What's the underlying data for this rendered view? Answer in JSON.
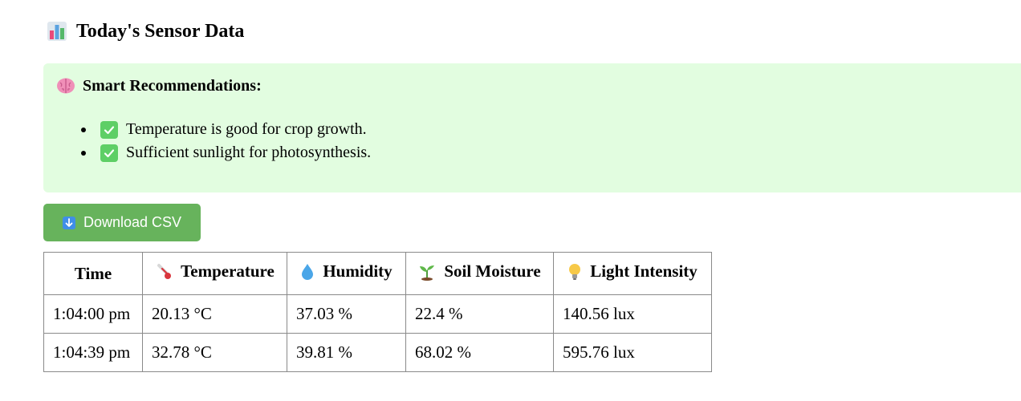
{
  "heading": {
    "icon": "bar-chart-icon",
    "title": "Today's Sensor Data"
  },
  "recommendations": {
    "icon": "brain-icon",
    "title": "Smart Recommendations:",
    "items": [
      {
        "icon": "check-mark-icon",
        "text": "Temperature is good for crop growth."
      },
      {
        "icon": "check-mark-icon",
        "text": "Sufficient sunlight for photosynthesis."
      }
    ]
  },
  "download": {
    "icon": "down-arrow-icon",
    "label": "Download CSV"
  },
  "table": {
    "columns": [
      {
        "label": "Time",
        "icon": ""
      },
      {
        "label": "Temperature",
        "icon": "thermometer-icon"
      },
      {
        "label": "Humidity",
        "icon": "droplet-icon"
      },
      {
        "label": "Soil Moisture",
        "icon": "seedling-icon"
      },
      {
        "label": "Light Intensity",
        "icon": "light-bulb-icon"
      }
    ],
    "rows": [
      [
        "1:04:00 pm",
        "20.13 °C",
        "37.03 %",
        "22.4 %",
        "140.56 lux"
      ],
      [
        "1:04:39 pm",
        "32.78 °C",
        "39.81 %",
        "68.02 %",
        "595.76 lux"
      ]
    ]
  },
  "colors": {
    "recommendation_bg": "#e2fde0",
    "button_bg": "#67b35c",
    "check_bg": "#5ecf66"
  }
}
